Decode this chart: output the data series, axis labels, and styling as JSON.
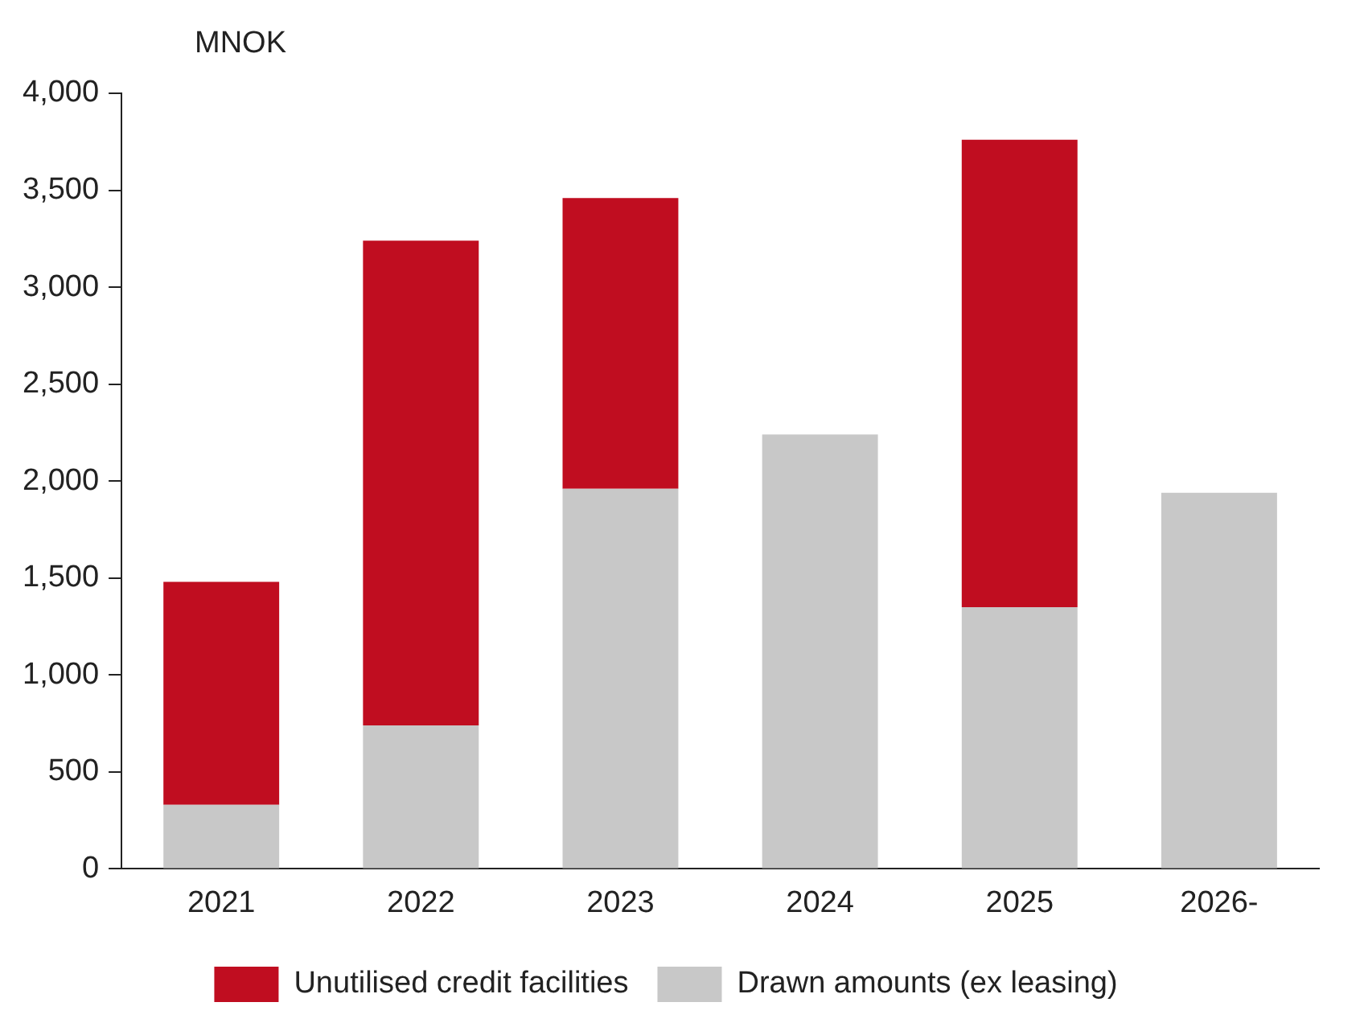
{
  "chart_data": {
    "type": "bar",
    "ylabel": "MNOK",
    "categories": [
      "2021",
      "2022",
      "2023",
      "2024",
      "2025",
      "2026-"
    ],
    "stacked": true,
    "series": [
      {
        "name": "Drawn amounts (ex leasing)",
        "color": "#c8c8c8",
        "values": [
          330,
          740,
          1960,
          2240,
          1350,
          1940
        ]
      },
      {
        "name": "Unutilised credit facilities",
        "color": "#c00d20",
        "values": [
          1150,
          2500,
          1500,
          null,
          2410,
          null
        ]
      }
    ],
    "ylim": [
      0,
      4000
    ],
    "yticks": [
      {
        "value": 0,
        "label": "0"
      },
      {
        "value": 500,
        "label": "500"
      },
      {
        "value": 1000,
        "label": "1,000"
      },
      {
        "value": 1500,
        "label": "1,500"
      },
      {
        "value": 2000,
        "label": "2,000"
      },
      {
        "value": 2500,
        "label": "2,500"
      },
      {
        "value": 3000,
        "label": "3,000"
      },
      {
        "value": 3500,
        "label": "3,500"
      },
      {
        "value": 4000,
        "label": "4,000"
      }
    ],
    "grid": false,
    "legend": "bottom"
  }
}
